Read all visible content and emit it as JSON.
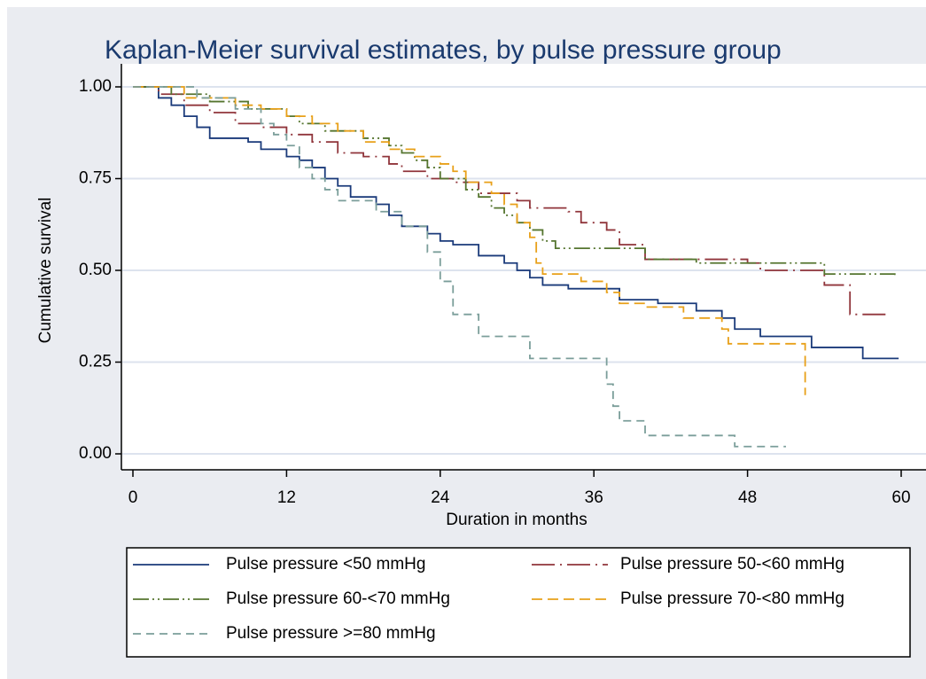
{
  "chart_data": {
    "type": "line",
    "step": "post",
    "title": "Kaplan-Meier survival estimates, by pulse pressure group",
    "xlabel": "Duration in months",
    "ylabel": "Cumulative survival",
    "xlim": [
      0,
      60
    ],
    "ylim": [
      0,
      1
    ],
    "xticks": [
      0,
      12,
      24,
      36,
      48,
      60
    ],
    "yticks": [
      {
        "value": 0,
        "label": "0.00"
      },
      {
        "value": 0.25,
        "label": "0.25"
      },
      {
        "value": 0.5,
        "label": "0.50"
      },
      {
        "value": 0.75,
        "label": "0.75"
      },
      {
        "value": 1,
        "label": "1.00"
      }
    ],
    "grid": true,
    "legend": "bottom",
    "series": [
      {
        "name": "Pulse pressure <50 mmHg",
        "color": "#1a3a7a",
        "dash": "solid",
        "x": [
          0,
          2,
          3,
          4,
          5,
          6,
          9,
          10,
          12,
          13,
          14,
          15,
          16,
          17,
          19,
          20,
          21,
          23,
          24,
          25,
          27,
          29,
          30,
          31,
          32,
          34,
          38,
          41,
          44,
          46,
          47,
          49,
          53,
          57,
          59.8
        ],
        "values": [
          1.0,
          0.97,
          0.95,
          0.92,
          0.89,
          0.86,
          0.85,
          0.83,
          0.81,
          0.8,
          0.78,
          0.75,
          0.73,
          0.7,
          0.68,
          0.65,
          0.62,
          0.6,
          0.58,
          0.57,
          0.54,
          0.52,
          0.5,
          0.48,
          0.46,
          0.45,
          0.42,
          0.41,
          0.39,
          0.37,
          0.34,
          0.32,
          0.29,
          0.26,
          0.26
        ]
      },
      {
        "name": "Pulse pressure 50-<60 mmHg",
        "color": "#90353b",
        "dash": "longdash-dot",
        "x": [
          0,
          2,
          4,
          6,
          8,
          10,
          12,
          14,
          16,
          18,
          20,
          21,
          23,
          25,
          27,
          30,
          31,
          34,
          35,
          37,
          38,
          40,
          48,
          49,
          54,
          56,
          59
        ],
        "values": [
          1.0,
          0.98,
          0.95,
          0.93,
          0.9,
          0.89,
          0.87,
          0.85,
          0.82,
          0.81,
          0.79,
          0.77,
          0.75,
          0.74,
          0.71,
          0.69,
          0.67,
          0.66,
          0.63,
          0.61,
          0.57,
          0.53,
          0.52,
          0.5,
          0.46,
          0.38,
          0.38
        ]
      },
      {
        "name": "Pulse pressure 60-<70 mmHg",
        "color": "#55752f",
        "dash": "dash-dot-dot",
        "x": [
          0,
          3,
          6,
          9,
          12,
          13,
          15,
          18,
          20,
          21,
          22,
          23,
          24,
          26,
          27,
          28,
          29,
          30,
          31,
          32,
          33,
          37,
          40,
          44,
          54,
          59.5
        ],
        "values": [
          1.0,
          0.98,
          0.96,
          0.94,
          0.92,
          0.9,
          0.88,
          0.86,
          0.84,
          0.82,
          0.8,
          0.78,
          0.75,
          0.72,
          0.7,
          0.67,
          0.65,
          0.63,
          0.61,
          0.58,
          0.56,
          0.56,
          0.53,
          0.52,
          0.49,
          0.48
        ]
      },
      {
        "name": "Pulse pressure 70-<80 mmHg",
        "color": "#e8a019",
        "dash": "dash",
        "x": [
          0,
          4,
          8,
          10,
          12,
          14,
          16,
          18,
          20,
          22,
          24,
          25,
          26,
          28,
          29,
          30,
          31,
          31.5,
          32,
          35,
          37,
          38,
          40,
          43,
          46,
          46.5,
          52.5,
          52.5
        ],
        "values": [
          1.0,
          0.97,
          0.95,
          0.94,
          0.92,
          0.9,
          0.88,
          0.85,
          0.83,
          0.81,
          0.79,
          0.77,
          0.74,
          0.71,
          0.68,
          0.63,
          0.59,
          0.52,
          0.49,
          0.47,
          0.44,
          0.41,
          0.4,
          0.37,
          0.34,
          0.3,
          0.3,
          0.16
        ]
      },
      {
        "name": "Pulse pressure >=80 mmHg",
        "color": "#7b9e9a",
        "dash": "shortdash",
        "x": [
          0,
          5,
          8,
          10,
          11,
          12,
          13,
          14,
          15,
          16,
          19,
          21,
          23,
          24,
          25,
          27,
          31,
          37,
          37.5,
          38,
          40,
          47,
          51
        ],
        "values": [
          1.0,
          0.97,
          0.94,
          0.9,
          0.87,
          0.84,
          0.78,
          0.75,
          0.72,
          0.69,
          0.66,
          0.62,
          0.55,
          0.47,
          0.38,
          0.32,
          0.26,
          0.19,
          0.13,
          0.09,
          0.05,
          0.02,
          0.02
        ]
      }
    ]
  }
}
